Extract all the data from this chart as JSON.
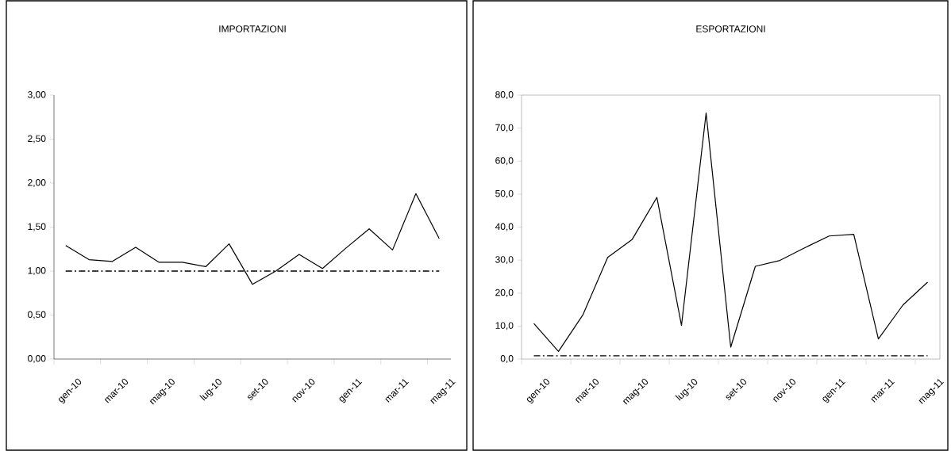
{
  "chart_data": [
    {
      "type": "line",
      "title": "IMPORTAZIONI",
      "categories": [
        "gen-10",
        null,
        "mar-10",
        null,
        "mag-10",
        null,
        "lug-10",
        null,
        "set-10",
        null,
        "nov-10",
        null,
        "gen-11",
        null,
        "mar-11",
        null,
        "mag-11"
      ],
      "values": [
        1.29,
        1.13,
        1.11,
        1.27,
        1.1,
        1.1,
        1.05,
        1.31,
        0.85,
        1.0,
        1.19,
        1.03,
        1.26,
        1.48,
        1.24,
        1.88,
        1.37
      ],
      "color": "#000000",
      "ylim": [
        0,
        3
      ],
      "yticks": [
        {
          "value": 0,
          "label": "0,00"
        },
        {
          "value": 0.5,
          "label": "0,50"
        },
        {
          "value": 1,
          "label": "1,00"
        },
        {
          "value": 1.5,
          "label": "1,50"
        },
        {
          "value": 2,
          "label": "2,00"
        },
        {
          "value": 2.5,
          "label": "2,50"
        },
        {
          "value": 3,
          "label": "3,00"
        }
      ],
      "ref_lines": [
        {
          "axis": "y",
          "value": 1,
          "color": "#000000",
          "line_style": "dashdot"
        }
      ]
    },
    {
      "type": "line",
      "title": "ESPORTAZIONI",
      "categories": [
        "gen-10",
        null,
        "mar-10",
        null,
        "mag-10",
        null,
        "lug-10",
        null,
        "set-10",
        null,
        "nov-10",
        null,
        "gen-11",
        null,
        "mar-11",
        null,
        "mag-11"
      ],
      "values": [
        10.8,
        2.3,
        13.5,
        30.8,
        36.3,
        49.0,
        10.2,
        74.6,
        3.6,
        28.1,
        29.9,
        33.7,
        37.3,
        37.8,
        6.1,
        16.4,
        23.3
      ],
      "color": "#000000",
      "ylim": [
        0,
        80
      ],
      "yticks": [
        {
          "value": 0,
          "label": "0,0"
        },
        {
          "value": 10,
          "label": "10,0"
        },
        {
          "value": 20,
          "label": "20,0"
        },
        {
          "value": 30,
          "label": "30,0"
        },
        {
          "value": 40,
          "label": "40,0"
        },
        {
          "value": 50,
          "label": "50,0"
        },
        {
          "value": 60,
          "label": "60,0"
        },
        {
          "value": 70,
          "label": "70,0"
        },
        {
          "value": 80,
          "label": "80,0"
        }
      ],
      "ref_lines": [
        {
          "axis": "y",
          "value": 1,
          "color": "#000000",
          "line_style": "dashdot"
        }
      ]
    }
  ]
}
